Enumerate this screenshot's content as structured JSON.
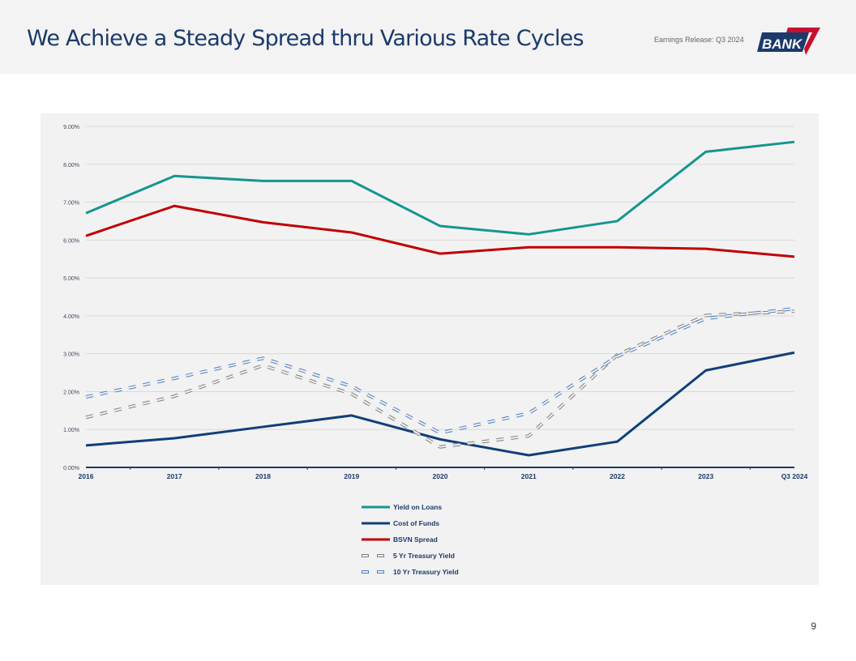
{
  "header": {
    "title": "We Achieve a Steady Spread thru Various Rate Cycles",
    "release": "Earnings Release: Q3 2024",
    "logo_text": "BANK7"
  },
  "page_number": "9",
  "chart_data": {
    "type": "line",
    "categories": [
      "2016",
      "2017",
      "2018",
      "2019",
      "2020",
      "2021",
      "2022",
      "2023",
      "Q3 2024"
    ],
    "ylim": [
      0,
      9
    ],
    "yticks": [
      "0.00%",
      "1.00%",
      "2.00%",
      "3.00%",
      "4.00%",
      "5.00%",
      "6.00%",
      "7.00%",
      "8.00%",
      "9.00%"
    ],
    "grid": true,
    "legend": "bottom",
    "series": [
      {
        "name": "Yield on Loans",
        "color": "#16958f",
        "dash": false,
        "values": [
          6.71,
          7.69,
          7.56,
          7.56,
          6.37,
          6.15,
          6.5,
          8.33,
          8.59
        ]
      },
      {
        "name": "Cost of Funds",
        "color": "#0f3f78",
        "dash": false,
        "values": [
          0.58,
          0.77,
          1.07,
          1.37,
          0.74,
          0.32,
          0.68,
          2.56,
          3.03
        ]
      },
      {
        "name": "BSVN Spread",
        "color": "#c00000",
        "dash": false,
        "values": [
          6.11,
          6.9,
          6.47,
          6.2,
          5.64,
          5.81,
          5.81,
          5.77,
          5.56
        ]
      },
      {
        "name": "5 Yr Treasury Yield",
        "color": "#7f7f7f",
        "dash": true,
        "values": [
          1.32,
          1.88,
          2.69,
          1.94,
          0.54,
          0.83,
          2.97,
          4.01,
          4.12
        ]
      },
      {
        "name": "10 Yr Treasury Yield",
        "color": "#4a7fc1",
        "dash": true,
        "values": [
          1.86,
          2.35,
          2.88,
          2.14,
          0.91,
          1.43,
          2.93,
          3.93,
          4.19
        ]
      }
    ]
  }
}
